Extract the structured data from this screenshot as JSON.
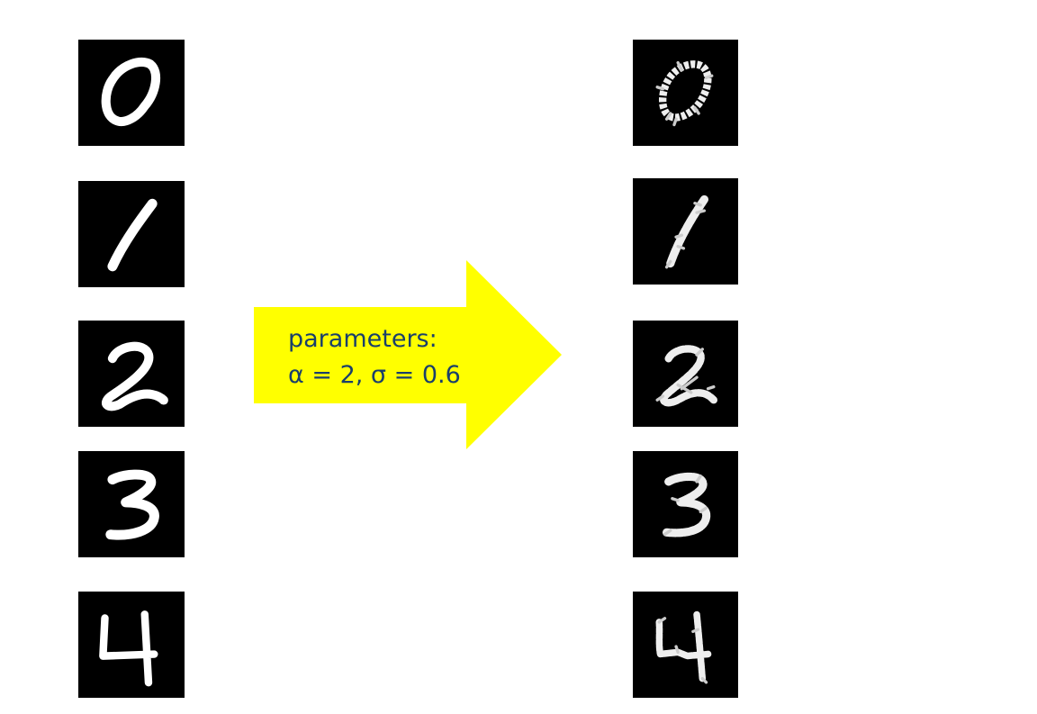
{
  "figure": {
    "arrow_color": "#ffff00",
    "text_color": "#1a3f6b",
    "label_line1": "parameters:",
    "label_line2": "α = 2, σ = 0.6",
    "digits": [
      "0",
      "1",
      "2",
      "3",
      "4"
    ]
  }
}
